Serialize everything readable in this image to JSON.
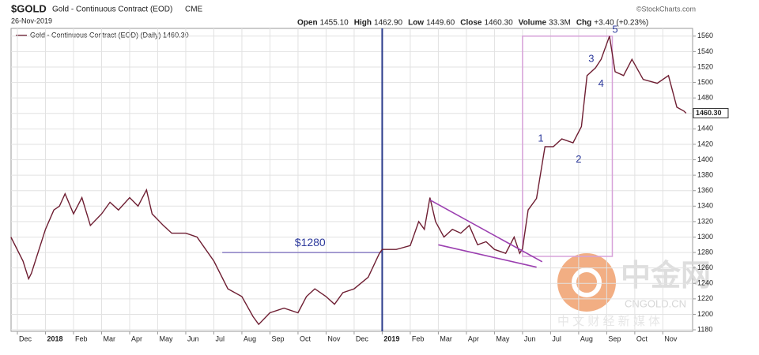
{
  "header": {
    "symbol": "$GOLD",
    "name": "Gold - Continuous Contract (EOD)",
    "exchange": "CME",
    "date": "26-Nov-2019",
    "credit": "©StockCharts.com",
    "quote": [
      {
        "label": "Open",
        "value": "1455.10"
      },
      {
        "label": "High",
        "value": "1462.90"
      },
      {
        "label": "Low",
        "value": "1449.60"
      },
      {
        "label": "Close",
        "value": "1460.30"
      },
      {
        "label": "Volume",
        "value": "33.3M"
      },
      {
        "label": "Chg",
        "value": "+3.40 (+0.23%)"
      }
    ]
  },
  "chart_data": {
    "type": "line",
    "legend": "Gold - Continuous Contract (EOD) (Daily) 1460.30",
    "last_value_label": "1460.30",
    "x": [
      -0.23,
      0.2,
      0.4,
      0.5,
      1.0,
      1.3,
      1.5,
      1.7,
      2.0,
      2.3,
      2.6,
      3.0,
      3.3,
      3.6,
      4.0,
      4.3,
      4.6,
      4.8,
      5.2,
      5.5,
      6.0,
      6.4,
      7.0,
      7.5,
      8.0,
      8.4,
      8.6,
      9.0,
      9.5,
      10.0,
      10.3,
      10.6,
      11.0,
      11.3,
      11.6,
      12.0,
      12.5,
      12.9,
      13.0,
      13.5,
      14.0,
      14.3,
      14.5,
      14.7,
      14.9,
      15.2,
      15.5,
      15.8,
      16.1,
      16.4,
      16.7,
      17.0,
      17.4,
      17.7,
      17.9,
      18.0,
      18.2,
      18.5,
      18.8,
      19.1,
      19.4,
      19.8,
      20.1,
      20.3,
      20.6,
      20.8,
      21.1,
      21.3,
      21.6,
      21.9,
      22.3,
      22.8,
      23.2,
      23.5,
      23.75,
      23.83
    ],
    "series": [
      {
        "name": "Gold - Continuous Contract (EOD)",
        "color": "#6e1e32",
        "values": [
          1300,
          1269,
          1246,
          1253,
          1310,
          1335,
          1340,
          1356,
          1330,
          1351,
          1315,
          1330,
          1345,
          1335,
          1351,
          1340,
          1361,
          1330,
          1315,
          1305,
          1305,
          1300,
          1269,
          1233,
          1223,
          1197,
          1187,
          1202,
          1208,
          1202,
          1223,
          1233,
          1223,
          1213,
          1228,
          1233,
          1248,
          1279,
          1284,
          1284,
          1289,
          1320,
          1310,
          1351,
          1320,
          1300,
          1310,
          1305,
          1315,
          1290,
          1294,
          1284,
          1279,
          1300,
          1279,
          1285,
          1335,
          1350,
          1417,
          1417,
          1427,
          1422,
          1443,
          1509,
          1519,
          1530,
          1560,
          1514,
          1509,
          1530,
          1504,
          1499,
          1509,
          1468,
          1463,
          1460.3
        ]
      }
    ],
    "xlim": [
      -0.225,
      24.06
    ],
    "ylim": [
      1178,
      1570
    ],
    "yticks": [
      1180,
      1200,
      1220,
      1240,
      1260,
      1280,
      1300,
      1320,
      1340,
      1360,
      1380,
      1400,
      1420,
      1440,
      1460,
      1480,
      1500,
      1520,
      1540,
      1560
    ],
    "xticks": [
      {
        "value": 0,
        "label": "Dec"
      },
      {
        "value": 1,
        "label": "2018"
      },
      {
        "value": 2,
        "label": "Feb"
      },
      {
        "value": 3,
        "label": "Mar"
      },
      {
        "value": 4,
        "label": "Apr"
      },
      {
        "value": 5,
        "label": "May"
      },
      {
        "value": 6,
        "label": "Jun"
      },
      {
        "value": 7,
        "label": "Jul"
      },
      {
        "value": 8,
        "label": "Aug"
      },
      {
        "value": 9,
        "label": "Sep"
      },
      {
        "value": 10,
        "label": "Oct"
      },
      {
        "value": 11,
        "label": "Nov"
      },
      {
        "value": 12,
        "label": "Dec"
      },
      {
        "value": 13,
        "label": "2019"
      },
      {
        "value": 14,
        "label": "Feb"
      },
      {
        "value": 15,
        "label": "Mar"
      },
      {
        "value": 16,
        "label": "Apr"
      },
      {
        "value": 17,
        "label": "May"
      },
      {
        "value": 18,
        "label": "Jun"
      },
      {
        "value": 19,
        "label": "Jul"
      },
      {
        "value": 20,
        "label": "Aug"
      },
      {
        "value": 21,
        "label": "Sep"
      },
      {
        "value": 22,
        "label": "Oct"
      },
      {
        "value": 23,
        "label": "Nov"
      }
    ],
    "grid": true,
    "support": {
      "label": "$1280",
      "value": 1280,
      "from": 7.3,
      "to": 13
    },
    "vline": 13,
    "wedge": [
      {
        "x": [
          14.7,
          18.7
        ],
        "y": [
          1348,
          1268
        ]
      },
      {
        "x": [
          15.0,
          18.5
        ],
        "y": [
          1290,
          1261
        ]
      }
    ],
    "box": {
      "x": [
        18.0,
        21.2
      ],
      "y": [
        1275,
        1560
      ]
    },
    "waves": [
      {
        "label": "1",
        "x": 18.65,
        "y": 1427
      },
      {
        "label": "2",
        "x": 20.0,
        "y": 1400
      },
      {
        "label": "3",
        "x": 20.45,
        "y": 1530
      },
      {
        "label": "4",
        "x": 20.8,
        "y": 1498
      },
      {
        "label": "5",
        "x": 21.3,
        "y": 1568
      }
    ]
  },
  "watermark": {
    "brand": "中金网",
    "domain": "CNGOLD.CN",
    "slogan": "中 文 财 经 新 媒 体"
  }
}
